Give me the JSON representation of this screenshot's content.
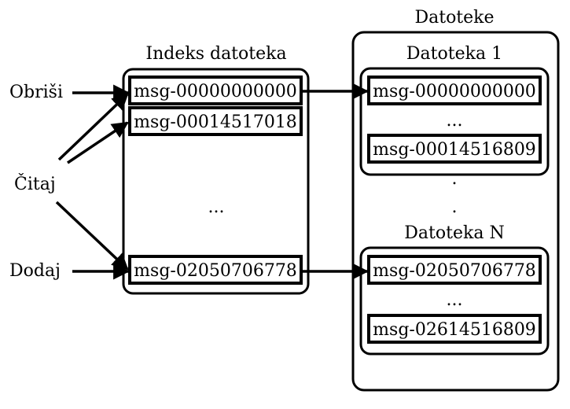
{
  "actions": {
    "delete": "Obriši",
    "read": "Čitaj",
    "add": "Dodaj"
  },
  "index": {
    "title": "Indeks datoteka",
    "entries": [
      "msg-00000000000",
      "msg-00014517018",
      "msg-02050706778"
    ],
    "ellipsis": "..."
  },
  "files": {
    "title": "Datoteke",
    "groups": [
      {
        "title": "Datoteka 1",
        "entries": [
          "msg-00000000000",
          "msg-00014516809"
        ],
        "ellipsis": "..."
      },
      {
        "title": "Datoteka N",
        "entries": [
          "msg-02050706778",
          "msg-02614516809"
        ],
        "ellipsis": "..."
      }
    ],
    "between_dots": [
      "."
    ]
  },
  "colors": {
    "stroke": "#000000",
    "background": "#ffffff"
  }
}
